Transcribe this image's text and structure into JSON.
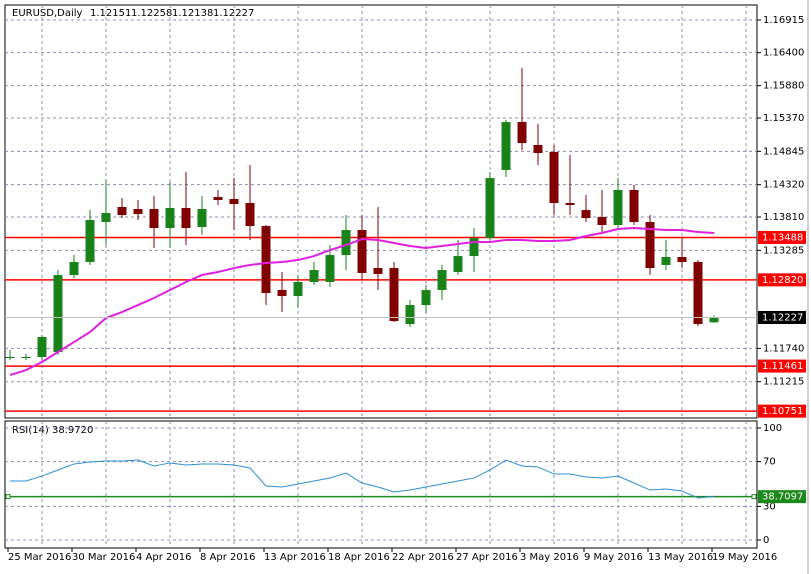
{
  "chart_data": [
    {
      "type": "candlestick",
      "title": "EURUSD,Daily",
      "ohlc": [
        1.12151,
        1.12258,
        1.12138,
        1.12227
      ],
      "categories": [
        "25 Mar 2016",
        null,
        null,
        null,
        "30 Mar 2016",
        null,
        null,
        null,
        "4 Apr 2016",
        null,
        null,
        null,
        "8 Apr 2016",
        null,
        null,
        null,
        "13 Apr 2016",
        null,
        null,
        null,
        "18 Apr 2016",
        null,
        null,
        null,
        "22 Apr 2016",
        null,
        null,
        null,
        "27 Apr 2016",
        null,
        null,
        null,
        "3 May 2016",
        null,
        null,
        null,
        "9 May 2016",
        null,
        null,
        null,
        "13 May 2016",
        null,
        null,
        null,
        "19 May 2016"
      ],
      "open": [
        1.11588,
        1.11588,
        1.11604,
        1.11683,
        1.12896,
        1.13101,
        1.13731,
        1.13968,
        1.13936,
        1.13936,
        1.13637,
        1.13952,
        1.13653,
        1.14125,
        1.14094,
        1.14031,
        1.13668,
        1.1266,
        1.12565,
        1.12786,
        1.12786,
        1.13211,
        1.13605,
        1.13006,
        1.13006,
        1.12124,
        1.12423,
        1.1266,
        1.12943,
        1.13195,
        1.13479,
        1.14551,
        1.15307,
        1.14945,
        1.14835,
        1.14031,
        1.1392,
        1.1381,
        1.13684,
        1.14236,
        1.13731,
        1.13054,
        1.1318,
        1.13101,
        1.12151
      ],
      "high": [
        1.11714,
        1.11651,
        1.1195,
        1.12975,
        1.13211,
        1.1392,
        1.14393,
        1.1411,
        1.14078,
        1.14141,
        1.14362,
        1.14519,
        1.14141,
        1.14236,
        1.14425,
        1.1463,
        1.13684,
        1.12943,
        1.12896,
        1.13101,
        1.13369,
        1.13842,
        1.13842,
        1.13968,
        1.13101,
        1.12502,
        1.12738,
        1.13054,
        1.13448,
        1.13637,
        1.14519,
        1.15339,
        1.16158,
        1.15276,
        1.14945,
        1.14787,
        1.14157,
        1.14236,
        1.14425,
        1.14314,
        1.13842,
        1.13448,
        1.13479,
        1.13132,
        1.12258
      ],
      "low": [
        1.11556,
        1.11556,
        1.11556,
        1.11635,
        1.12849,
        1.13054,
        1.13369,
        1.13794,
        1.13763,
        1.13322,
        1.13322,
        1.13369,
        1.13526,
        1.13999,
        1.13605,
        1.13448,
        1.12423,
        1.12313,
        1.12376,
        1.12738,
        1.12707,
        1.12975,
        1.12817,
        1.1266,
        1.12155,
        1.12077,
        1.12297,
        1.12502,
        1.12896,
        1.12943,
        1.13448,
        1.14441,
        1.14866,
        1.1463,
        1.13842,
        1.13842,
        1.13731,
        1.13574,
        1.13637,
        1.13684,
        1.12896,
        1.12975,
        1.13006,
        1.12092,
        1.12138
      ],
      "close": [
        1.11604,
        1.11604,
        1.11919,
        1.12896,
        1.13101,
        1.13763,
        1.13873,
        1.13842,
        1.13857,
        1.13637,
        1.13952,
        1.13637,
        1.13936,
        1.14078,
        1.14015,
        1.13668,
        1.12612,
        1.12565,
        1.12786,
        1.12975,
        1.13211,
        1.13605,
        1.12928,
        1.12912,
        1.12171,
        1.12423,
        1.1266,
        1.12975,
        1.13195,
        1.13479,
        1.14425,
        1.15307,
        1.14976,
        1.14819,
        1.14031,
        1.13999,
        1.13794,
        1.13684,
        1.14236,
        1.13731,
        1.13006,
        1.1318,
        1.13101,
        1.12124,
        1.12227
      ],
      "up_color": "#1a821a",
      "down_color": "#800000",
      "ma": {
        "color": "#e020e0",
        "values": [
          1.1132,
          1.11399,
          1.11525,
          1.11683,
          1.1184,
          1.11998,
          1.12218,
          1.12313,
          1.12423,
          1.12534,
          1.1266,
          1.12786,
          1.12896,
          1.12943,
          1.13006,
          1.13054,
          1.13085,
          1.13101,
          1.13132,
          1.13195,
          1.1329,
          1.13369,
          1.13463,
          1.13448,
          1.134,
          1.13353,
          1.13322,
          1.13353,
          1.13385,
          1.13416,
          1.13416,
          1.13448,
          1.13448,
          1.13432,
          1.13432,
          1.13448,
          1.13511,
          1.13558,
          1.13621,
          1.13637,
          1.13621,
          1.13605,
          1.13605,
          1.13574,
          1.13558
        ]
      },
      "levels": [
        1.13488,
        {
          "value": 1.1282,
          "label": "1.12820"
        },
        1.11461,
        1.10751
      ],
      "level_color": "#ff0000",
      "ylim": [
        1.10643,
        1.17151
      ],
      "yticks": [
        1.16915,
        {
          "value": 1.164,
          "label": "1.16400"
        },
        {
          "value": 1.1588,
          "label": "1.15880"
        },
        {
          "value": 1.1537,
          "label": "1.15370"
        },
        1.14845,
        {
          "value": 1.1432,
          "label": "1.14320"
        },
        {
          "value": 1.1381,
          "label": "1.13810"
        },
        1.13285,
        {
          "value": 1.1174,
          "label": "1.11740"
        },
        1.11215
      ],
      "grid": true
    },
    {
      "type": "line",
      "title": "RSI(14) 38.9720",
      "color": "#2b8fd0",
      "values": [
        52.7,
        52.7,
        57.1,
        62.5,
        67.9,
        69.6,
        70.5,
        70.5,
        71.4,
        66.1,
        68.8,
        67.0,
        67.9,
        67.9,
        67.0,
        64.3,
        48.2,
        47.3,
        50.0,
        52.7,
        55.4,
        59.8,
        50.9,
        47.3,
        42.9,
        44.6,
        47.3,
        50.0,
        52.7,
        55.4,
        62.5,
        71.4,
        66.1,
        65.2,
        58.9,
        58.9,
        56.3,
        55.4,
        57.1,
        50.9,
        44.6,
        45.5,
        43.8,
        37.5,
        38.972
      ],
      "levels": [
        38.7097
      ],
      "level_color": "#1a8a1a",
      "ylim": [
        0,
        100
      ],
      "yticks": [
        100,
        70,
        30,
        0
      ],
      "grid": true
    }
  ]
}
